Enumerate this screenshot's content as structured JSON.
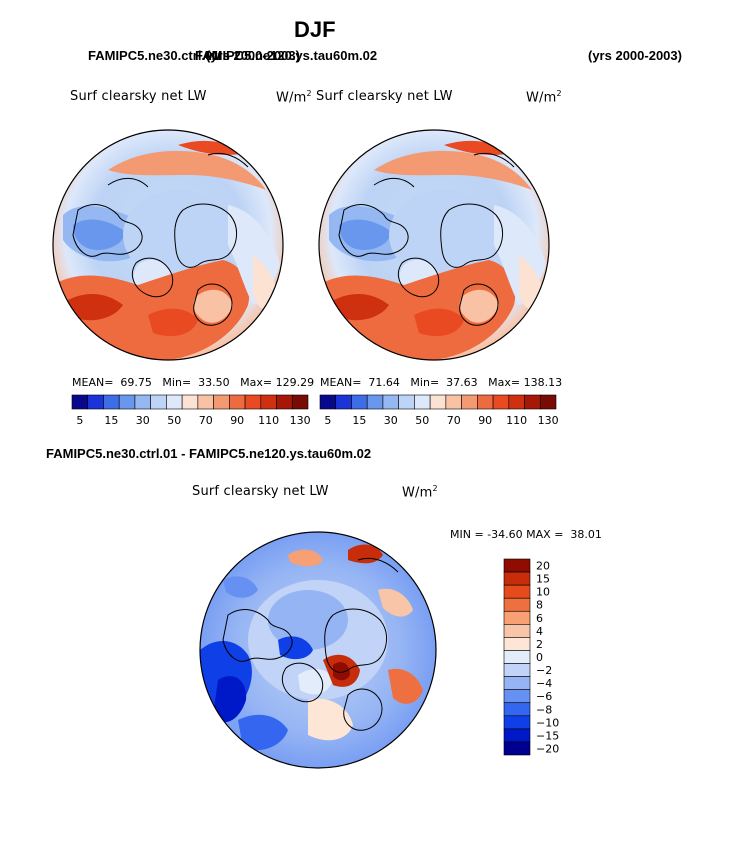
{
  "figure": {
    "season": "DJF",
    "case_left": "FAMIPC5.ne30.ctrl.01",
    "case_right_overlap": "FAMIPC5.ne120.ys.tau60m.02",
    "years_left": "(yrs 2000-2003)",
    "years_right": "(yrs 2000-2003)",
    "diff_title": "FAMIPC5.ne30.ctrl.01 - FAMIPC5.ne120.ys.tau60m.02"
  },
  "colors": {
    "abs_palette": [
      "#08088c",
      "#1c33d9",
      "#3d6ee8",
      "#6a97ee",
      "#95b8f3",
      "#bdd4f6",
      "#dde8fa",
      "#fbe2d3",
      "#f9c2a5",
      "#f49a73",
      "#ee6b40",
      "#e94a21",
      "#cf300f",
      "#a61706",
      "#780b03"
    ],
    "diff_palette": [
      "#000090",
      "#0019c8",
      "#0f3fe6",
      "#3566ef",
      "#6690f2",
      "#95b4f4",
      "#c1d4f7",
      "#e3ecfa",
      "#fde6d6",
      "#f9c5a8",
      "#f6a073",
      "#ee7041",
      "#e64b1e",
      "#c72d0a",
      "#8e0c02"
    ]
  },
  "chart_data": [
    {
      "type": "heatmap",
      "projection": "north polar stereographic",
      "title": "Surf clearsky net LW",
      "units_base": "W/m",
      "units_exp": "2",
      "mean_label": "MEAN=",
      "mean": "69.75",
      "min_label": "Min=",
      "min": "33.50",
      "max_label": "Max=",
      "max": "129.29",
      "colorbar_ticks": [
        "5",
        "15",
        "30",
        "50",
        "70",
        "90",
        "110",
        "130"
      ]
    },
    {
      "type": "heatmap",
      "projection": "north polar stereographic",
      "title": "Surf clearsky net LW",
      "units_base": "W/m",
      "units_exp": "2",
      "mean_label": "MEAN=",
      "mean": "71.64",
      "min_label": "Min=",
      "min": "37.63",
      "max_label": "Max=",
      "max": "138.13",
      "colorbar_ticks": [
        "5",
        "15",
        "30",
        "50",
        "70",
        "90",
        "110",
        "130"
      ]
    },
    {
      "type": "heatmap",
      "projection": "north polar stereographic",
      "title": "Surf clearsky net LW",
      "units_base": "W/m",
      "units_exp": "2",
      "min_label": "MIN =",
      "min": "-34.60",
      "max_label": "MAX =",
      "max": "38.01",
      "colorbar_ticks": [
        "20",
        "15",
        "10",
        "8",
        "6",
        "4",
        "2",
        "0",
        "−2",
        "−4",
        "−6",
        "−8",
        "−10",
        "−15",
        "−20"
      ]
    }
  ]
}
